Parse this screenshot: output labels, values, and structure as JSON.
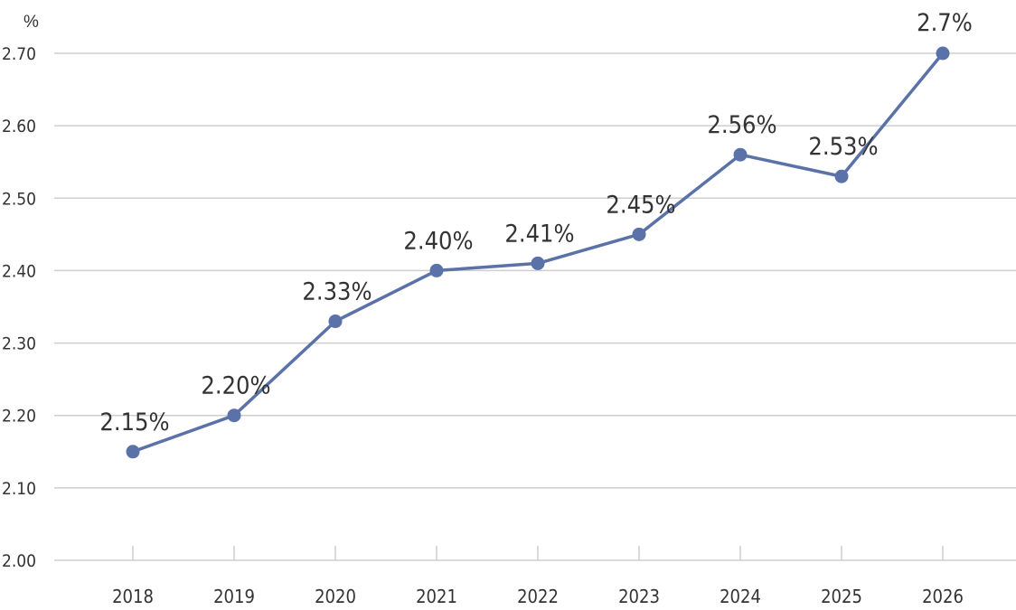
{
  "chart_data": {
    "type": "line",
    "title": "",
    "xlabel": "",
    "ylabel": "",
    "y_unit": "%",
    "categories": [
      "2018",
      "2019",
      "2020",
      "2021",
      "2022",
      "2023",
      "2024",
      "2025",
      "2026"
    ],
    "series": [
      {
        "values": [
          2.15,
          2.2,
          2.33,
          2.4,
          2.41,
          2.45,
          2.56,
          2.53,
          2.7
        ],
        "labels": [
          "2.15%",
          "2.20%",
          "2.33%",
          "2.40%",
          "2.41%",
          "2.45%",
          "2.56%",
          "2.53%",
          "2.7%"
        ],
        "color": "#5a72a8"
      }
    ],
    "ylim": [
      2.0,
      2.7
    ],
    "yticks": [
      "2.00",
      "2.10",
      "2.20",
      "2.30",
      "2.40",
      "2.50",
      "2.60",
      "2.70"
    ],
    "grid": true,
    "legend": "none"
  }
}
